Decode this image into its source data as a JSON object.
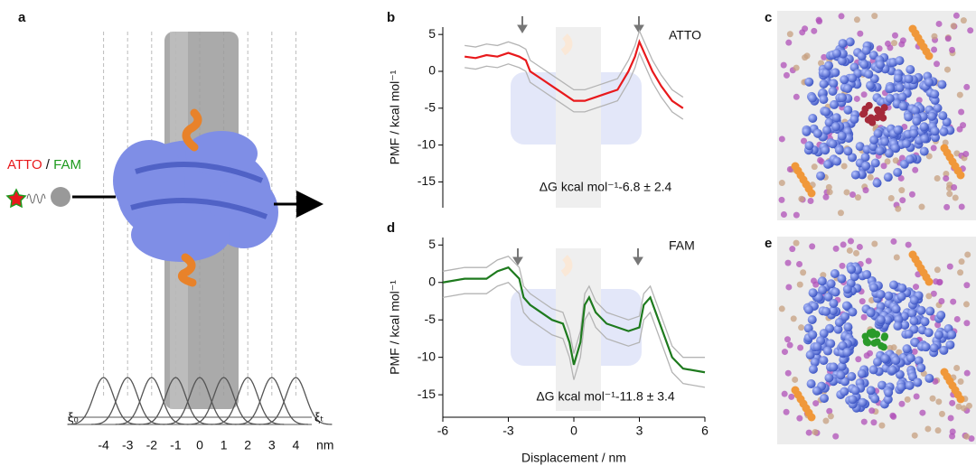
{
  "panel_a": {
    "label": "a",
    "probe_a": "ATTO",
    "separator": "/",
    "probe_b": "FAM",
    "xi_start": "ξ₀",
    "xi_end": "ξₜ",
    "ticks": [
      -4,
      -3,
      -2,
      -1,
      0,
      1,
      2,
      3,
      4
    ],
    "unit": "nm"
  },
  "chart_data": [
    {
      "type": "line",
      "label": "b",
      "ylabel": "PMF / kcal mol⁻¹",
      "annotation": "ΔG kcal mol⁻¹-6.8 ± 2.4",
      "annotation_color": "#e8191c",
      "xlim": [
        -6,
        6
      ],
      "ylim": [
        -18.5,
        6
      ],
      "yticks": [
        5,
        0,
        -5,
        -10,
        -15
      ],
      "x": [
        -5,
        -4.5,
        -4,
        -3.5,
        -3,
        -2.5,
        -2.2,
        -2,
        -1.5,
        -1,
        -0.5,
        0,
        0.5,
        1,
        1.5,
        2,
        2.5,
        2.8,
        3,
        3.3,
        3.6,
        4,
        4.5,
        5
      ],
      "series": [
        {
          "color": "#b4b4b4",
          "values": [
            3.5,
            3.3,
            3.7,
            3.5,
            4,
            3.5,
            3,
            1.5,
            0.5,
            -0.5,
            -1.5,
            -2.5,
            -2.5,
            -2,
            -1.5,
            -1,
            1.5,
            3.5,
            5.5,
            3.5,
            1.5,
            -0.5,
            -2.5,
            -3.5
          ]
        },
        {
          "color": "#b4b4b4",
          "values": [
            0.5,
            0.3,
            0.7,
            0.5,
            1,
            0.5,
            0,
            -1.5,
            -2.5,
            -3.5,
            -4.5,
            -5.5,
            -5.5,
            -5,
            -4.5,
            -4,
            -1.5,
            0.5,
            2.5,
            0.5,
            -1.5,
            -3.5,
            -5.5,
            -6.5
          ]
        },
        {
          "name": "ATTO",
          "color": "#e8191c",
          "values": [
            2,
            1.8,
            2.2,
            2,
            2.5,
            2,
            1.5,
            0,
            -1,
            -2,
            -3,
            -4,
            -4,
            -3.5,
            -3,
            -2.5,
            0,
            2,
            4,
            2,
            0,
            -2,
            -4,
            -5
          ]
        }
      ]
    },
    {
      "type": "line",
      "label": "d",
      "ylabel": "PMF / kcal mol⁻¹",
      "xlabel": "Displacement / nm",
      "annotation": "ΔG kcal mol⁻¹-11.8 ± 3.4",
      "annotation_color": "#1e7a1e",
      "xlim": [
        -6,
        6
      ],
      "ylim": [
        -18,
        6
      ],
      "yticks": [
        5,
        0,
        -5,
        -10,
        -15
      ],
      "xticks": [
        -6,
        -3,
        0,
        3,
        6
      ],
      "x": [
        -6,
        -5,
        -4,
        -3.5,
        -3,
        -2.5,
        -2.3,
        -2,
        -1.5,
        -1,
        -0.5,
        -0.2,
        0,
        0.3,
        0.5,
        0.7,
        1,
        1.5,
        2,
        2.5,
        3,
        3.2,
        3.5,
        4,
        4.5,
        5,
        6
      ],
      "series": [
        {
          "color": "#b4b4b4",
          "values": [
            1.5,
            2,
            2,
            3,
            3.5,
            2,
            -0.5,
            -1.5,
            -2.5,
            -3.5,
            -4,
            -6.5,
            -9.5,
            -6.5,
            -1.5,
            -0.5,
            -2.5,
            -4,
            -4.5,
            -5,
            -4.5,
            -1.5,
            -0.5,
            -4.5,
            -8.5,
            -10,
            -10
          ]
        },
        {
          "color": "#b4b4b4",
          "values": [
            -2,
            -1.5,
            -1.5,
            -0.5,
            0,
            -1.5,
            -4,
            -5,
            -6,
            -7,
            -7.5,
            -10,
            -13,
            -10,
            -5,
            -4,
            -6,
            -7.5,
            -8,
            -8.5,
            -8,
            -5,
            -4,
            -8,
            -12,
            -13.5,
            -14
          ]
        },
        {
          "name": "FAM",
          "color": "#1e7a1e",
          "values": [
            0,
            0.5,
            0.5,
            1.5,
            2,
            0.5,
            -2,
            -3,
            -4,
            -5,
            -5.5,
            -8,
            -11,
            -8,
            -3,
            -2,
            -4,
            -5.5,
            -6,
            -6.5,
            -6,
            -3,
            -2,
            -6,
            -10,
            -11.5,
            -12
          ]
        }
      ]
    }
  ],
  "panel_c": {
    "label": "c"
  },
  "panel_e": {
    "label": "e"
  }
}
